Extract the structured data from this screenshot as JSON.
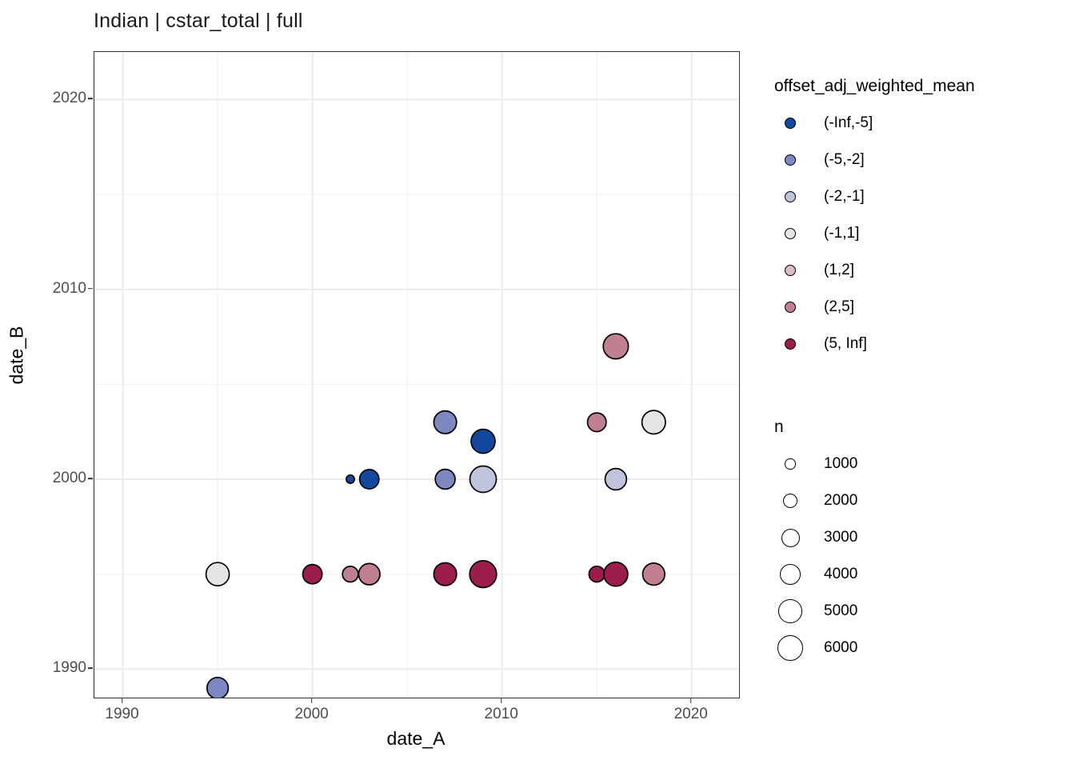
{
  "chart_data": {
    "type": "scatter",
    "title": "Indian | cstar_total | full",
    "xlabel": "date_A",
    "ylabel": "date_B",
    "x_ticks": [
      1990,
      2000,
      2010,
      2020
    ],
    "y_ticks": [
      1990,
      2000,
      2010,
      2020
    ],
    "x_minor_ticks": [
      1995,
      2005,
      2015
    ],
    "y_minor_ticks": [
      1995,
      2005,
      2015
    ],
    "x_domain": [
      1988.5,
      2022.5
    ],
    "y_domain": [
      1988.5,
      2022.5
    ],
    "grid": true,
    "legend_position": "right",
    "color_legend": {
      "title": "offset_adj_weighted_mean",
      "entries": [
        {
          "label": "(-Inf,-5]",
          "color": "#12489E"
        },
        {
          "label": "(-5,-2]",
          "color": "#7E88C0"
        },
        {
          "label": "(-2,-1]",
          "color": "#BFC3DB"
        },
        {
          "label": "(-1,1]",
          "color": "#E4E4E4"
        },
        {
          "label": "(1,2]",
          "color": "#DCB9C4"
        },
        {
          "label": "(2,5]",
          "color": "#C0808F"
        },
        {
          "label": "(5, Inf]",
          "color": "#9C1D4B"
        }
      ]
    },
    "size_legend": {
      "title": "n",
      "entries": [
        1000,
        2000,
        3000,
        4000,
        5000,
        6000
      ]
    },
    "points": [
      {
        "date_A": 1995,
        "date_B": 1995,
        "bin": "(-1,1]",
        "n": 4800
      },
      {
        "date_A": 1995,
        "date_B": 1989,
        "bin": "(-5,-2]",
        "n": 4000
      },
      {
        "date_A": 2000,
        "date_B": 1995,
        "bin": "(5, Inf]",
        "n": 3300
      },
      {
        "date_A": 2002,
        "date_B": 1995,
        "bin": "(2,5]",
        "n": 2200
      },
      {
        "date_A": 2003,
        "date_B": 1995,
        "bin": "(2,5]",
        "n": 4000
      },
      {
        "date_A": 2002,
        "date_B": 2000,
        "bin": "(-Inf,-5]",
        "n": 600
      },
      {
        "date_A": 2003,
        "date_B": 2000,
        "bin": "(-Inf,-5]",
        "n": 3300
      },
      {
        "date_A": 2007,
        "date_B": 2003,
        "bin": "(-5,-2]",
        "n": 4600
      },
      {
        "date_A": 2007,
        "date_B": 2000,
        "bin": "(-5,-2]",
        "n": 3500
      },
      {
        "date_A": 2007,
        "date_B": 1995,
        "bin": "(5, Inf]",
        "n": 4600
      },
      {
        "date_A": 2009,
        "date_B": 2002,
        "bin": "(-Inf,-5]",
        "n": 5100
      },
      {
        "date_A": 2009,
        "date_B": 2000,
        "bin": "(-2,-1]",
        "n": 6200
      },
      {
        "date_A": 2009,
        "date_B": 1995,
        "bin": "(5, Inf]",
        "n": 6400
      },
      {
        "date_A": 2015,
        "date_B": 2003,
        "bin": "(2,5]",
        "n": 3100
      },
      {
        "date_A": 2015,
        "date_B": 1995,
        "bin": "(5, Inf]",
        "n": 2200
      },
      {
        "date_A": 2016,
        "date_B": 2007,
        "bin": "(2,5]",
        "n": 5600
      },
      {
        "date_A": 2016,
        "date_B": 2000,
        "bin": "(-2,-1]",
        "n": 4100
      },
      {
        "date_A": 2016,
        "date_B": 1995,
        "bin": "(5, Inf]",
        "n": 5100
      },
      {
        "date_A": 2018,
        "date_B": 2003,
        "bin": "(-1,1]",
        "n": 4900
      },
      {
        "date_A": 2018,
        "date_B": 1995,
        "bin": "(2,5]",
        "n": 4300
      }
    ]
  },
  "colors": {
    "background": "#FFFFFF",
    "panel_border": "#333333",
    "grid_major": "#EBEBEB",
    "grid_minor": "#F4F4F4",
    "tick_label": "#4D4D4D",
    "point_stroke": "#000000"
  }
}
